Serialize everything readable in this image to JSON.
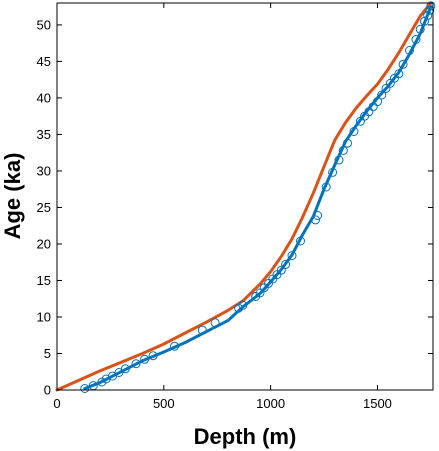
{
  "chart_data": {
    "type": "line",
    "xlabel": "Depth (m)",
    "ylabel": "Age (ka)",
    "xlim": [
      0,
      1760
    ],
    "ylim": [
      0,
      53
    ],
    "xticks": [
      0,
      500,
      1000,
      1500
    ],
    "yticks": [
      0,
      5,
      10,
      15,
      20,
      25,
      30,
      35,
      40,
      45,
      50
    ],
    "grid": false,
    "legend": "none",
    "series": [
      {
        "color": "#d95319",
        "x": [
          0,
          100,
          200,
          300,
          400,
          500,
          600,
          700,
          800,
          870,
          950,
          1000,
          1050,
          1100,
          1150,
          1200,
          1250,
          1300,
          1350,
          1400,
          1450,
          1500,
          1550,
          1600,
          1650,
          1700,
          1750
        ],
        "y": [
          0,
          1.3,
          2.6,
          3.8,
          5.0,
          6.3,
          7.8,
          9.3,
          10.9,
          12.2,
          14.5,
          16.2,
          18.3,
          20.7,
          23.7,
          27.0,
          30.6,
          34.2,
          36.6,
          38.6,
          40.3,
          41.9,
          43.9,
          46.2,
          48.7,
          51.2,
          53.0
        ]
      },
      {
        "color": "#0072bd",
        "x": [
          130,
          200,
          300,
          400,
          500,
          600,
          700,
          800,
          870,
          950,
          1000,
          1050,
          1100,
          1150,
          1200,
          1250,
          1300,
          1350,
          1400,
          1450,
          1500,
          1550,
          1600,
          1650,
          1700,
          1750
        ],
        "y": [
          0.2,
          1.0,
          2.5,
          4.0,
          5.2,
          6.5,
          8.0,
          9.5,
          11.4,
          13.2,
          14.8,
          16.5,
          18.5,
          21.3,
          23.8,
          27.5,
          30.8,
          34.0,
          36.2,
          38.2,
          40.0,
          41.6,
          43.5,
          46.0,
          48.8,
          52.5
        ]
      }
    ],
    "markers": {
      "symbol": "circle",
      "color": "#0072bd",
      "x": [
        130,
        170,
        210,
        230,
        260,
        290,
        320,
        370,
        410,
        450,
        550,
        680,
        740,
        850,
        870,
        930,
        950,
        970,
        990,
        1010,
        1030,
        1050,
        1070,
        1100,
        1140,
        1210,
        1220,
        1260,
        1290,
        1320,
        1340,
        1360,
        1390,
        1420,
        1440,
        1460,
        1480,
        1500,
        1520,
        1540,
        1560,
        1580,
        1600,
        1620,
        1650,
        1680,
        1700,
        1720,
        1735,
        1745,
        1750
      ],
      "y": [
        0.2,
        0.6,
        1.1,
        1.5,
        1.9,
        2.4,
        2.9,
        3.6,
        4.2,
        4.7,
        6.0,
        8.2,
        9.2,
        11.2,
        11.6,
        12.8,
        13.3,
        14.0,
        14.6,
        15.2,
        15.8,
        16.4,
        17.2,
        18.4,
        20.4,
        23.3,
        23.9,
        27.8,
        29.8,
        31.5,
        32.8,
        33.8,
        35.4,
        36.8,
        37.5,
        38.1,
        38.8,
        39.5,
        40.4,
        41.3,
        42.0,
        42.7,
        43.3,
        44.6,
        46.5,
        48.0,
        49.4,
        50.5,
        51.3,
        52.0,
        52.6
      ]
    }
  }
}
